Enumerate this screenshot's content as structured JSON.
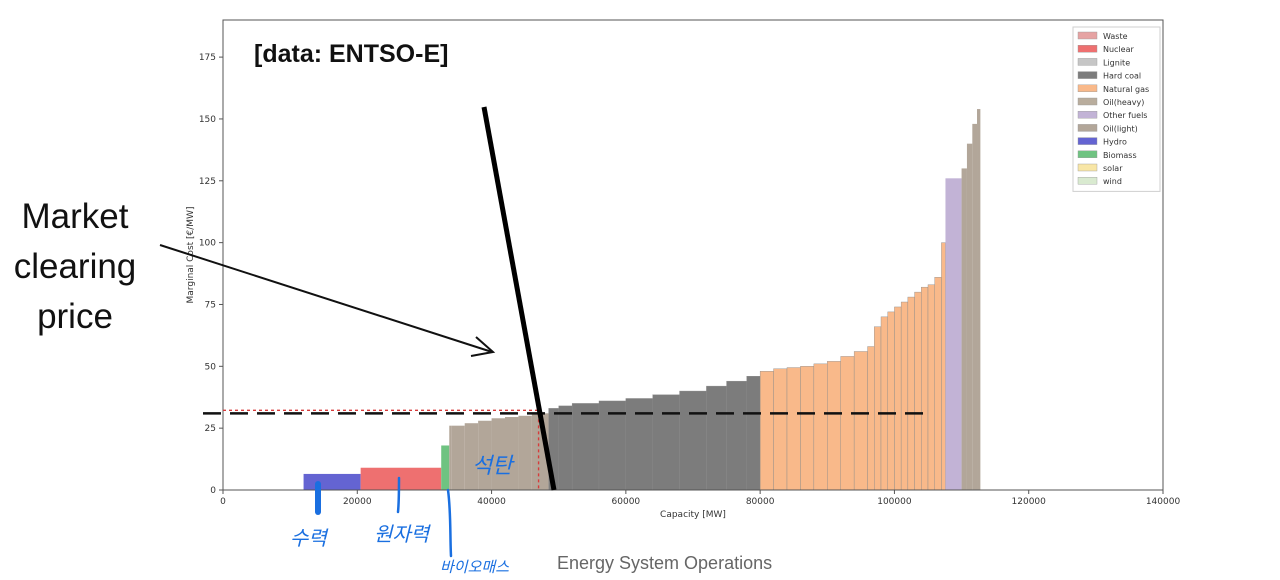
{
  "annotations": {
    "market_clearing_label": "Market\nclearing\nprice",
    "source_label": "[data: ENTSO-E]",
    "footer": "Energy System Operations",
    "handwritten_hydro": "수력",
    "handwritten_nuclear": "원자력",
    "handwritten_biomass": "바이오매스",
    "handwritten_gas": "석탄"
  },
  "chart_data": {
    "type": "bar",
    "xlabel": "Capacity [MW]",
    "ylabel": "Marginal Cost [€/MW]",
    "xlim": [
      0,
      140000
    ],
    "ylim": [
      0,
      190
    ],
    "x_ticks": [
      0,
      20000,
      40000,
      60000,
      80000,
      100000,
      120000,
      140000
    ],
    "y_ticks": [
      0,
      25,
      50,
      75,
      100,
      125,
      150,
      175
    ],
    "legend_position": "top-right",
    "legend": [
      {
        "name": "Waste",
        "color": "#e6a3a3"
      },
      {
        "name": "Nuclear",
        "color": "#ee7070"
      },
      {
        "name": "Lignite",
        "color": "#c6c6c6"
      },
      {
        "name": "Hard coal",
        "color": "#7c7c7c"
      },
      {
        "name": "Natural gas",
        "color": "#f9b98a"
      },
      {
        "name": "Oil(heavy)",
        "color": "#b9ad9d"
      },
      {
        "name": "Other fuels",
        "color": "#c2b3d6"
      },
      {
        "name": "Oil(light)",
        "color": "#b2a699"
      },
      {
        "name": "Hydro",
        "color": "#6464d2"
      },
      {
        "name": "Biomass",
        "color": "#6fc381"
      },
      {
        "name": "solar",
        "color": "#f8e6a6"
      },
      {
        "name": "wind",
        "color": "#d9ead0"
      }
    ],
    "market_clearing_price": 31,
    "market_clearing_capacity": 47000,
    "blocks": [
      {
        "fuel": "Hydro",
        "x0": 12000,
        "x1": 20500,
        "y": 6.5
      },
      {
        "fuel": "Nuclear",
        "x0": 20500,
        "x1": 32500,
        "y": 9
      },
      {
        "fuel": "Biomass",
        "x0": 32500,
        "x1": 33700,
        "y": 18
      },
      {
        "fuel": "Oil(light)",
        "x0": 33700,
        "x1": 34000,
        "y": 26
      },
      {
        "fuel": "Oil(light)",
        "x0": 34000,
        "x1": 36000,
        "y": 26
      },
      {
        "fuel": "Oil(light)",
        "x0": 36000,
        "x1": 38000,
        "y": 27
      },
      {
        "fuel": "Oil(light)",
        "x0": 38000,
        "x1": 40000,
        "y": 28
      },
      {
        "fuel": "Oil(light)",
        "x0": 40000,
        "x1": 42000,
        "y": 29
      },
      {
        "fuel": "Oil(light)",
        "x0": 42000,
        "x1": 44000,
        "y": 29.5
      },
      {
        "fuel": "Oil(light)",
        "x0": 44000,
        "x1": 46000,
        "y": 30
      },
      {
        "fuel": "Oil(light)",
        "x0": 46000,
        "x1": 48500,
        "y": 31
      },
      {
        "fuel": "Hard coal",
        "x0": 48500,
        "x1": 50000,
        "y": 33
      },
      {
        "fuel": "Hard coal",
        "x0": 50000,
        "x1": 52000,
        "y": 34
      },
      {
        "fuel": "Hard coal",
        "x0": 52000,
        "x1": 56000,
        "y": 35
      },
      {
        "fuel": "Hard coal",
        "x0": 56000,
        "x1": 60000,
        "y": 36
      },
      {
        "fuel": "Hard coal",
        "x0": 60000,
        "x1": 64000,
        "y": 37
      },
      {
        "fuel": "Hard coal",
        "x0": 64000,
        "x1": 68000,
        "y": 38.5
      },
      {
        "fuel": "Hard coal",
        "x0": 68000,
        "x1": 72000,
        "y": 40
      },
      {
        "fuel": "Hard coal",
        "x0": 72000,
        "x1": 75000,
        "y": 42
      },
      {
        "fuel": "Hard coal",
        "x0": 75000,
        "x1": 78000,
        "y": 44
      },
      {
        "fuel": "Hard coal",
        "x0": 78000,
        "x1": 80000,
        "y": 46
      },
      {
        "fuel": "Natural gas",
        "x0": 80000,
        "x1": 82000,
        "y": 48
      },
      {
        "fuel": "Natural gas",
        "x0": 82000,
        "x1": 84000,
        "y": 49
      },
      {
        "fuel": "Natural gas",
        "x0": 84000,
        "x1": 86000,
        "y": 49.5
      },
      {
        "fuel": "Natural gas",
        "x0": 86000,
        "x1": 88000,
        "y": 50
      },
      {
        "fuel": "Natural gas",
        "x0": 88000,
        "x1": 90000,
        "y": 51
      },
      {
        "fuel": "Natural gas",
        "x0": 90000,
        "x1": 92000,
        "y": 52
      },
      {
        "fuel": "Natural gas",
        "x0": 92000,
        "x1": 94000,
        "y": 54
      },
      {
        "fuel": "Natural gas",
        "x0": 94000,
        "x1": 96000,
        "y": 56
      },
      {
        "fuel": "Natural gas",
        "x0": 96000,
        "x1": 97000,
        "y": 58
      },
      {
        "fuel": "Natural gas",
        "x0": 97000,
        "x1": 98000,
        "y": 66
      },
      {
        "fuel": "Natural gas",
        "x0": 98000,
        "x1": 99000,
        "y": 70
      },
      {
        "fuel": "Natural gas",
        "x0": 99000,
        "x1": 100000,
        "y": 72
      },
      {
        "fuel": "Natural gas",
        "x0": 100000,
        "x1": 101000,
        "y": 74
      },
      {
        "fuel": "Natural gas",
        "x0": 101000,
        "x1": 102000,
        "y": 76
      },
      {
        "fuel": "Natural gas",
        "x0": 102000,
        "x1": 103000,
        "y": 78
      },
      {
        "fuel": "Natural gas",
        "x0": 103000,
        "x1": 104000,
        "y": 80
      },
      {
        "fuel": "Natural gas",
        "x0": 104000,
        "x1": 105000,
        "y": 82
      },
      {
        "fuel": "Natural gas",
        "x0": 105000,
        "x1": 106000,
        "y": 83
      },
      {
        "fuel": "Natural gas",
        "x0": 106000,
        "x1": 107000,
        "y": 86
      },
      {
        "fuel": "Natural gas",
        "x0": 107000,
        "x1": 107600,
        "y": 100
      },
      {
        "fuel": "Other fuels",
        "x0": 107600,
        "x1": 110000,
        "y": 126
      },
      {
        "fuel": "Oil(light)",
        "x0": 110000,
        "x1": 110800,
        "y": 130
      },
      {
        "fuel": "Oil(light)",
        "x0": 110800,
        "x1": 111600,
        "y": 140
      },
      {
        "fuel": "Oil(light)",
        "x0": 111600,
        "x1": 112300,
        "y": 148
      },
      {
        "fuel": "Oil(light)",
        "x0": 112300,
        "x1": 112800,
        "y": 154
      }
    ]
  }
}
